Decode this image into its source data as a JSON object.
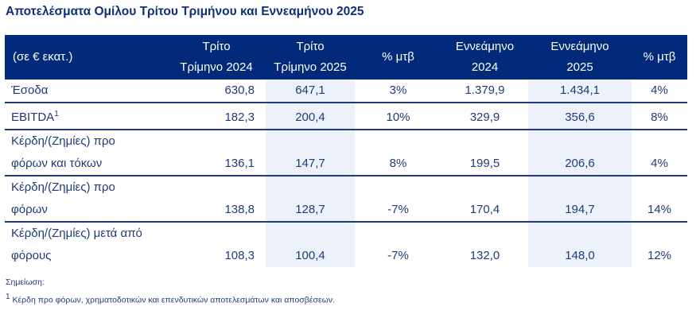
{
  "title": "Αποτελέσματα Ομίλου Τρίτου Τριμήνου και Εννεαμήνου 2025",
  "table": {
    "headers": [
      [
        "(σε € εκατ.)"
      ],
      [
        "Τρίτο",
        "Τρίμηνο 2024"
      ],
      [
        "Τρίτο",
        "Τρίμηνο 2025"
      ],
      [
        "% μτβ"
      ],
      [
        "Εννεάμηνο",
        "2024"
      ],
      [
        "Εννεάμηνο",
        "2025"
      ],
      [
        "% μτβ"
      ]
    ],
    "rows": [
      {
        "label": [
          "Έσοδα"
        ],
        "sup": "",
        "values": [
          "630,8",
          "647,1",
          "3%",
          "1.379,9",
          "1.434,1",
          "4%"
        ]
      },
      {
        "label": [
          "EBITDA"
        ],
        "sup": "1",
        "values": [
          "182,3",
          "200,4",
          "10%",
          "329,9",
          "356,6",
          "8%"
        ]
      },
      {
        "label": [
          "Κέρδη/(Ζημίες) προ",
          "φόρων και τόκων"
        ],
        "sup": "",
        "values": [
          "136,1",
          "147,7",
          "8%",
          "199,5",
          "206,6",
          "4%"
        ]
      },
      {
        "label": [
          "Κέρδη/(Ζημίες) προ",
          "φόρων"
        ],
        "sup": "",
        "values": [
          "138,8",
          "128,7",
          "-7%",
          "170,4",
          "194,7",
          "14%"
        ]
      },
      {
        "label": [
          "Κέρδη/(Ζημίες) μετά από",
          "φόρους"
        ],
        "sup": "",
        "values": [
          "108,3",
          "100,4",
          "-7%",
          "132,0",
          "148,0",
          "12%"
        ]
      }
    ]
  },
  "note": {
    "heading": "Σημείωση:",
    "sup": "1",
    "text": "Κέρδη προ φόρων, χρηματοδοτικών και επενδυτικών αποτελεσμάτων και αποσβέσεων."
  },
  "colors": {
    "header_bg": "#022a7a",
    "shade": "#edf1f9",
    "text": "#1f3b78"
  }
}
